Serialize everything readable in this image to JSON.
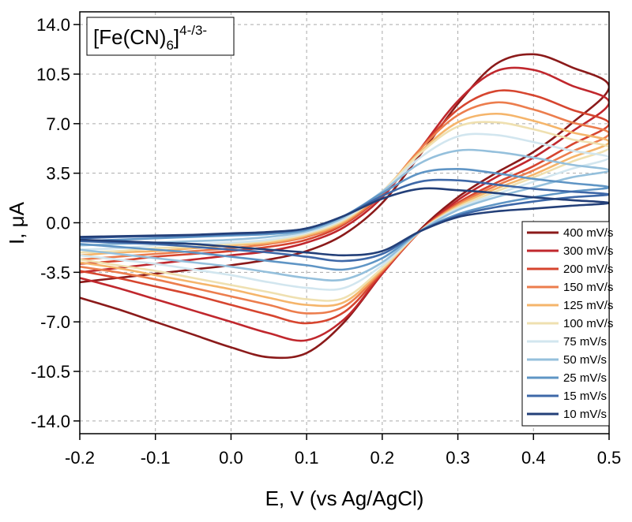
{
  "chart_data": {
    "type": "line",
    "annotation": {
      "base": "[Fe(CN)",
      "sub": "6",
      "close": "]",
      "sup": "4-/3-"
    },
    "x_label": "E, V (vs Ag/AgCl)",
    "y_label": "I, μA",
    "xlim": [
      -0.2,
      0.5
    ],
    "ylim": [
      -14.9,
      14.9
    ],
    "xticks": [
      -0.2,
      -0.1,
      {
        "value": 0,
        "label": "0.0"
      },
      0.1,
      0.2,
      0.3,
      0.4,
      0.5
    ],
    "yticks": [
      {
        "value": 14,
        "label": "14.0"
      },
      10.5,
      {
        "value": 7,
        "label": "7.0"
      },
      3.5,
      {
        "value": 0,
        "label": "0.0"
      },
      -3.5,
      {
        "value": -7,
        "label": "-7.0"
      },
      -10.5,
      {
        "value": -14,
        "label": "-14.0"
      }
    ],
    "grid": true,
    "legend": "lower right",
    "x": [
      -0.2,
      -0.15,
      -0.1,
      -0.05,
      0,
      0.05,
      0.1,
      0.15,
      0.2,
      0.25,
      0.3,
      0.35,
      0.4,
      0.45,
      0.5,
      0.45,
      0.4,
      0.35,
      0.3,
      0.25,
      0.2,
      0.15,
      0.1,
      0.05,
      0,
      -0.05,
      -0.1,
      -0.15,
      -0.2
    ],
    "series": [
      {
        "name": "400 mV/s",
        "color": "#8b1a1a",
        "values": [
          -4.2,
          -3.9,
          -3.6,
          -3.3,
          -3.0,
          -2.6,
          -2.0,
          -0.8,
          1.4,
          4.8,
          8.4,
          11.2,
          11.9,
          11.0,
          9.6,
          7.0,
          5.0,
          3.5,
          1.8,
          -0.5,
          -3.6,
          -7.0,
          -9.2,
          -9.5,
          -8.8,
          -7.9,
          -7.0,
          -6.1,
          -5.3
        ]
      },
      {
        "name": "300 mV/s",
        "color": "#c0272d",
        "values": [
          -3.5,
          -3.2,
          -2.9,
          -2.6,
          -2.3,
          -2.0,
          -1.4,
          -0.3,
          1.8,
          5.2,
          8.6,
          10.7,
          10.8,
          9.7,
          8.5,
          6.4,
          4.6,
          3.2,
          1.6,
          -0.6,
          -3.6,
          -6.8,
          -8.3,
          -7.8,
          -7.0,
          -6.2,
          -5.4,
          -4.6,
          -3.9
        ]
      },
      {
        "name": "200 mV/s",
        "color": "#d6452f",
        "values": [
          -2.9,
          -2.7,
          -2.4,
          -2.2,
          -2.0,
          -1.7,
          -1.2,
          -0.1,
          2.0,
          5.2,
          8.0,
          9.3,
          9.0,
          8.0,
          7.0,
          5.5,
          4.0,
          2.8,
          1.4,
          -0.6,
          -3.5,
          -6.3,
          -7.1,
          -6.5,
          -5.8,
          -5.1,
          -4.5,
          -3.9,
          -3.4
        ]
      },
      {
        "name": "150 mV/s",
        "color": "#ec7d4d",
        "values": [
          -2.6,
          -2.4,
          -2.2,
          -2.0,
          -1.8,
          -1.5,
          -1.0,
          0.0,
          2.1,
          5.2,
          7.6,
          8.5,
          8.0,
          7.1,
          6.3,
          5.0,
          3.7,
          2.6,
          1.3,
          -0.6,
          -3.4,
          -5.9,
          -6.4,
          -5.8,
          -5.2,
          -4.6,
          -4.0,
          -3.5,
          -3.1
        ]
      },
      {
        "name": "125 mV/s",
        "color": "#f5b56b",
        "values": [
          -2.3,
          -2.1,
          -2.0,
          -1.8,
          -1.6,
          -1.4,
          -0.9,
          0.1,
          2.2,
          5.0,
          7.1,
          7.7,
          7.2,
          6.4,
          5.7,
          4.6,
          3.4,
          2.4,
          1.2,
          -0.6,
          -3.3,
          -5.6,
          -5.8,
          -5.3,
          -4.7,
          -4.2,
          -3.7,
          -3.2,
          -2.8
        ]
      },
      {
        "name": "100 mV/s",
        "color": "#efe0b0",
        "values": [
          -2.1,
          -2.0,
          -1.8,
          -1.7,
          -1.5,
          -1.3,
          -0.8,
          0.2,
          2.2,
          4.9,
          6.8,
          7.1,
          6.6,
          5.9,
          5.3,
          4.3,
          3.2,
          2.2,
          1.1,
          -0.6,
          -3.2,
          -5.3,
          -5.4,
          -4.9,
          -4.4,
          -3.9,
          -3.4,
          -3.0,
          -2.6
        ]
      },
      {
        "name": "75 mV/s",
        "color": "#d2e6ef",
        "values": [
          -1.9,
          -1.8,
          -1.6,
          -1.5,
          -1.4,
          -1.2,
          -0.7,
          0.3,
          2.2,
          4.6,
          6.1,
          6.2,
          5.7,
          5.1,
          4.6,
          3.8,
          2.9,
          2.0,
          1.0,
          -0.6,
          -3.0,
          -4.6,
          -4.6,
          -4.2,
          -3.7,
          -3.3,
          -2.9,
          -2.6,
          -2.3
        ]
      },
      {
        "name": "50 mV/s",
        "color": "#95c0dc",
        "values": [
          -1.6,
          -1.5,
          -1.4,
          -1.3,
          -1.2,
          -1.0,
          -0.6,
          0.4,
          2.2,
          4.2,
          5.1,
          5.0,
          4.6,
          4.1,
          3.7,
          3.2,
          2.5,
          1.8,
          0.9,
          -0.6,
          -2.8,
          -4.0,
          -3.9,
          -3.5,
          -3.1,
          -2.8,
          -2.5,
          -2.2,
          -1.9
        ]
      },
      {
        "name": "25 mV/s",
        "color": "#5f95c5",
        "values": [
          -1.3,
          -1.2,
          -1.1,
          -1.0,
          -0.9,
          -0.8,
          -0.5,
          0.5,
          2.1,
          3.5,
          3.8,
          3.5,
          3.1,
          2.8,
          2.5,
          2.2,
          1.8,
          1.3,
          0.6,
          -0.6,
          -2.5,
          -3.3,
          -3.0,
          -2.7,
          -2.4,
          -2.1,
          -1.9,
          -1.7,
          -1.5
        ]
      },
      {
        "name": "15 mV/s",
        "color": "#3e68a8",
        "values": [
          -1.1,
          -1.0,
          -0.95,
          -0.9,
          -0.8,
          -0.7,
          -0.4,
          0.5,
          1.9,
          2.9,
          3.0,
          2.7,
          2.4,
          2.2,
          2.0,
          1.8,
          1.5,
          1.1,
          0.5,
          -0.6,
          -2.2,
          -2.7,
          -2.4,
          -2.1,
          -1.9,
          -1.7,
          -1.5,
          -1.4,
          -1.3
        ]
      },
      {
        "name": "10 mV/s",
        "color": "#233f78",
        "values": [
          -1.0,
          -0.95,
          -0.9,
          -0.85,
          -0.75,
          -0.65,
          -0.4,
          0.5,
          1.7,
          2.4,
          2.3,
          2.1,
          1.8,
          1.6,
          1.4,
          1.2,
          1.0,
          0.8,
          0.4,
          -0.6,
          -2.0,
          -2.3,
          -2.1,
          -1.9,
          -1.7,
          -1.5,
          -1.4,
          -1.3,
          -1.2
        ]
      }
    ]
  }
}
